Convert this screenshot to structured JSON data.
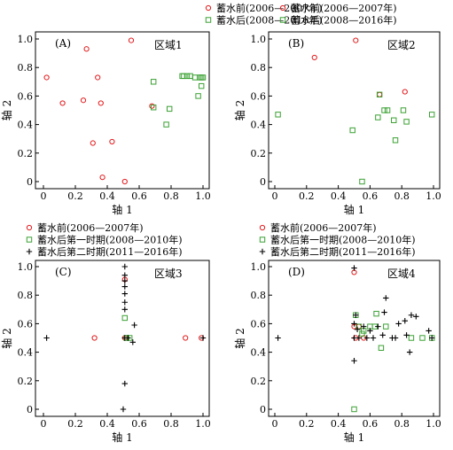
{
  "chart_data": [
    {
      "type": "scatter",
      "panel_label": "(A)",
      "region_label": "区域1",
      "xlabel": "轴 1",
      "ylabel": "轴 2",
      "xlim": [
        0,
        1.0
      ],
      "ylim": [
        0,
        1.0
      ],
      "xticks": [
        "0",
        "0.2",
        "0.4",
        "0.6",
        "0.8",
        "1.0"
      ],
      "yticks": [
        "0",
        "0.2",
        "0.4",
        "0.6",
        "0.8",
        "1.0"
      ],
      "grid": false,
      "legend_position": "top-center",
      "series": [
        {
          "name": "蓄水前(2006—2007年)",
          "marker": "circle",
          "color": "#e31a1c",
          "points": [
            [
              0.02,
              0.73
            ],
            [
              0.12,
              0.55
            ],
            [
              0.25,
              0.57
            ],
            [
              0.27,
              0.93
            ],
            [
              0.31,
              0.27
            ],
            [
              0.34,
              0.73
            ],
            [
              0.36,
              0.55
            ],
            [
              0.37,
              0.03
            ],
            [
              0.43,
              0.28
            ],
            [
              0.51,
              0.0
            ],
            [
              0.55,
              0.99
            ],
            [
              0.68,
              0.53
            ]
          ]
        },
        {
          "name": "蓄水后(2008—2016年)",
          "marker": "square",
          "color": "#3aa132",
          "points": [
            [
              0.69,
              0.52
            ],
            [
              0.69,
              0.7
            ],
            [
              0.77,
              0.4
            ],
            [
              0.79,
              0.51
            ],
            [
              0.87,
              0.74
            ],
            [
              0.88,
              0.74
            ],
            [
              0.9,
              0.74
            ],
            [
              0.92,
              0.74
            ],
            [
              0.95,
              0.73
            ],
            [
              0.97,
              0.6
            ],
            [
              0.98,
              0.73
            ],
            [
              0.99,
              0.67
            ],
            [
              0.99,
              0.73
            ],
            [
              1.0,
              0.73
            ]
          ]
        }
      ]
    },
    {
      "type": "scatter",
      "panel_label": "(B)",
      "region_label": "区域2",
      "xlabel": "轴 1",
      "ylabel": "轴 2",
      "xlim": [
        0,
        1.0
      ],
      "ylim": [
        0,
        1.0
      ],
      "xticks": [
        "0",
        "0.2",
        "0.4",
        "0.6",
        "0.8",
        "1.0"
      ],
      "yticks": [
        "0",
        "0.2",
        "0.4",
        "0.6",
        "0.8",
        "1.0"
      ],
      "grid": false,
      "legend_position": "top-center",
      "series": [
        {
          "name": "蓄水前(2006—2007年)",
          "marker": "circle",
          "color": "#e31a1c",
          "points": [
            [
              0.25,
              0.87
            ],
            [
              0.51,
              0.99
            ],
            [
              0.66,
              0.61
            ],
            [
              0.82,
              0.63
            ]
          ]
        },
        {
          "name": "蓄水后(2008—2016年)",
          "marker": "square",
          "color": "#3aa132",
          "points": [
            [
              0.02,
              0.47
            ],
            [
              0.49,
              0.36
            ],
            [
              0.55,
              0.0
            ],
            [
              0.65,
              0.45
            ],
            [
              0.66,
              0.61
            ],
            [
              0.69,
              0.5
            ],
            [
              0.71,
              0.5
            ],
            [
              0.75,
              0.43
            ],
            [
              0.76,
              0.29
            ],
            [
              0.81,
              0.5
            ],
            [
              0.83,
              0.42
            ],
            [
              0.99,
              0.47
            ]
          ]
        }
      ]
    },
    {
      "type": "scatter",
      "panel_label": "(C)",
      "region_label": "区域3",
      "xlabel": "轴 1",
      "ylabel": "轴 2",
      "xlim": [
        0,
        1.0
      ],
      "ylim": [
        0,
        1.0
      ],
      "xticks": [
        "0",
        "0.2",
        "0.4",
        "0.6",
        "0.8",
        "1.0"
      ],
      "yticks": [
        "0",
        "0.2",
        "0.4",
        "0.6",
        "0.8",
        "1.0"
      ],
      "grid": false,
      "legend_position": "top",
      "series": [
        {
          "name": "蓄水前(2006—2007年)",
          "marker": "circle",
          "color": "#e31a1c",
          "points": [
            [
              0.32,
              0.5
            ],
            [
              0.51,
              0.5
            ],
            [
              0.51,
              0.91
            ],
            [
              0.89,
              0.5
            ],
            [
              0.99,
              0.5
            ]
          ]
        },
        {
          "name": "蓄水后第一时期(2008—2010年)",
          "marker": "square",
          "color": "#3aa132",
          "points": [
            [
              0.51,
              0.64
            ],
            [
              0.52,
              0.5
            ],
            [
              0.54,
              0.5
            ]
          ]
        },
        {
          "name": "蓄水后第二时期(2011—2016年)",
          "marker": "plus",
          "color": "#000000",
          "points": [
            [
              0.02,
              0.5
            ],
            [
              0.5,
              0.0
            ],
            [
              0.51,
              0.18
            ],
            [
              0.51,
              0.5
            ],
            [
              0.51,
              0.7
            ],
            [
              0.51,
              0.75
            ],
            [
              0.51,
              0.81
            ],
            [
              0.51,
              0.86
            ],
            [
              0.51,
              0.9
            ],
            [
              0.51,
              0.94
            ],
            [
              0.51,
              1.0
            ],
            [
              0.53,
              0.5
            ],
            [
              0.56,
              0.47
            ],
            [
              0.57,
              0.59
            ],
            [
              1.0,
              0.5
            ]
          ]
        }
      ]
    },
    {
      "type": "scatter",
      "panel_label": "(D)",
      "region_label": "区域4",
      "xlabel": "轴 1",
      "ylabel": "轴 2",
      "xlim": [
        0,
        1.0
      ],
      "ylim": [
        0,
        1.0
      ],
      "xticks": [
        "0",
        "0.2",
        "0.4",
        "0.6",
        "0.8",
        "1.0"
      ],
      "yticks": [
        "0",
        "0.2",
        "0.4",
        "0.6",
        "0.8",
        "1.0"
      ],
      "grid": false,
      "legend_position": "top",
      "series": [
        {
          "name": "蓄水前(2006—2007年)",
          "marker": "circle",
          "color": "#e31a1c",
          "points": [
            [
              0.5,
              0.96
            ],
            [
              0.5,
              0.58
            ],
            [
              0.51,
              0.5
            ],
            [
              0.53,
              0.58
            ],
            [
              0.56,
              0.5
            ]
          ]
        },
        {
          "name": "蓄水后第一时期(2008—2010年)",
          "marker": "square",
          "color": "#3aa132",
          "points": [
            [
              0.5,
              0.0
            ],
            [
              0.51,
              0.66
            ],
            [
              0.53,
              0.58
            ],
            [
              0.55,
              0.53
            ],
            [
              0.56,
              0.55
            ],
            [
              0.6,
              0.58
            ],
            [
              0.63,
              0.58
            ],
            [
              0.64,
              0.67
            ],
            [
              0.67,
              0.43
            ],
            [
              0.7,
              0.58
            ],
            [
              0.86,
              0.5
            ],
            [
              0.93,
              0.5
            ],
            [
              0.99,
              0.5
            ]
          ]
        },
        {
          "name": "蓄水后第二时期(2011—2016年)",
          "marker": "plus",
          "color": "#000000",
          "points": [
            [
              0.02,
              0.5
            ],
            [
              0.5,
              0.34
            ],
            [
              0.5,
              0.5
            ],
            [
              0.5,
              0.6
            ],
            [
              0.5,
              0.99
            ],
            [
              0.51,
              0.66
            ],
            [
              0.52,
              0.56
            ],
            [
              0.53,
              0.5
            ],
            [
              0.56,
              0.58
            ],
            [
              0.58,
              0.5
            ],
            [
              0.6,
              0.55
            ],
            [
              0.62,
              0.5
            ],
            [
              0.65,
              0.58
            ],
            [
              0.68,
              0.52
            ],
            [
              0.69,
              0.68
            ],
            [
              0.7,
              0.78
            ],
            [
              0.74,
              0.5
            ],
            [
              0.76,
              0.5
            ],
            [
              0.78,
              0.6
            ],
            [
              0.82,
              0.62
            ],
            [
              0.83,
              0.52
            ],
            [
              0.85,
              0.4
            ],
            [
              0.86,
              0.66
            ],
            [
              0.89,
              0.65
            ],
            [
              0.97,
              0.55
            ],
            [
              0.99,
              0.5
            ]
          ]
        }
      ]
    }
  ]
}
